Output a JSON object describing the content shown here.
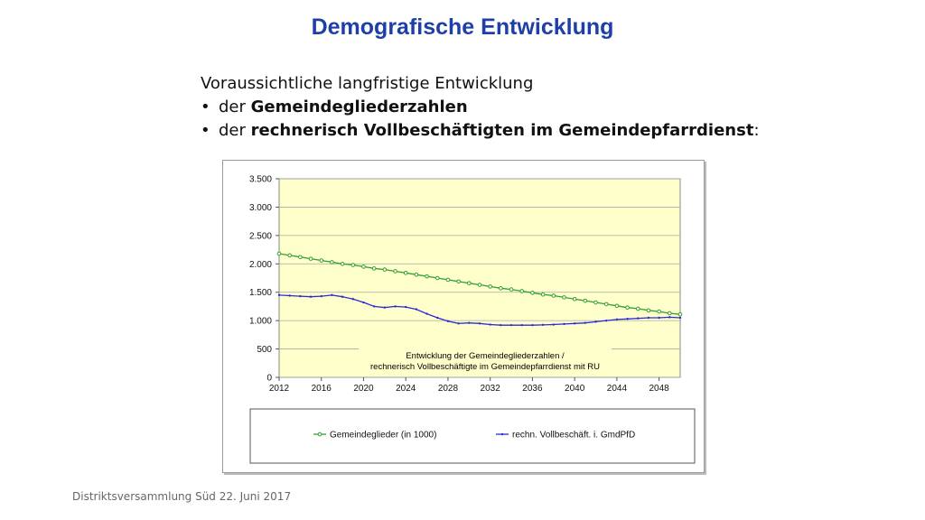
{
  "slide": {
    "title": "Demografische Entwicklung",
    "intro": "Voraussichtliche langfristige Entwicklung",
    "bullets": [
      {
        "prefix": "der ",
        "bold": "Gemeindegliederzahlen",
        "suffix": ""
      },
      {
        "prefix": "der ",
        "bold": "rechnerisch Vollbeschäftigten im Gemeindepfarrdienst",
        "suffix": ":"
      }
    ],
    "bullet_char": "•",
    "footer": "Distriktsversammlung Süd 22. Juni 2017"
  },
  "chart_data": {
    "type": "line",
    "plot_background": "#ffffcc",
    "annotation": [
      "Entwicklung  der Gemeindegliederzahlen  /",
      "rechnerisch Vollbeschäftigte im  Gemeindepfarrdienst mit RU"
    ],
    "ylim": [
      0,
      3500
    ],
    "yticks": [
      0,
      500,
      1000,
      1500,
      2000,
      2500,
      3000,
      3500
    ],
    "ytick_labels": [
      "0",
      "500",
      "1.000",
      "1.500",
      "2.000",
      "2.500",
      "3.000",
      "3.500"
    ],
    "xlim": [
      2012,
      2050
    ],
    "xticks": [
      2012,
      2016,
      2020,
      2024,
      2028,
      2032,
      2036,
      2040,
      2044,
      2048
    ],
    "grid": true,
    "legend_position": "bottom",
    "x": [
      2012,
      2013,
      2014,
      2015,
      2016,
      2017,
      2018,
      2019,
      2020,
      2021,
      2022,
      2023,
      2024,
      2025,
      2026,
      2027,
      2028,
      2029,
      2030,
      2031,
      2032,
      2033,
      2034,
      2035,
      2036,
      2037,
      2038,
      2039,
      2040,
      2041,
      2042,
      2043,
      2044,
      2045,
      2046,
      2047,
      2048,
      2049,
      2050
    ],
    "series": [
      {
        "name": "Gemeindeglieder (in 1000)",
        "color": "#33a02c",
        "marker": "circle",
        "values": [
          2180,
          2150,
          2120,
          2090,
          2060,
          2030,
          2000,
          1980,
          1950,
          1920,
          1900,
          1870,
          1840,
          1810,
          1780,
          1750,
          1720,
          1690,
          1660,
          1630,
          1600,
          1570,
          1550,
          1520,
          1490,
          1460,
          1440,
          1410,
          1380,
          1350,
          1320,
          1290,
          1260,
          1230,
          1210,
          1180,
          1160,
          1130,
          1110
        ]
      },
      {
        "name": "rechn. Vollbeschäft. i. GmdPfD",
        "color": "#2b2bd6",
        "marker": "dot",
        "values": [
          1450,
          1440,
          1430,
          1420,
          1430,
          1450,
          1420,
          1380,
          1320,
          1250,
          1230,
          1250,
          1240,
          1200,
          1120,
          1050,
          990,
          950,
          960,
          950,
          930,
          920,
          920,
          920,
          920,
          925,
          930,
          940,
          950,
          960,
          980,
          1000,
          1020,
          1030,
          1040,
          1050,
          1050,
          1060,
          1050
        ]
      }
    ]
  }
}
